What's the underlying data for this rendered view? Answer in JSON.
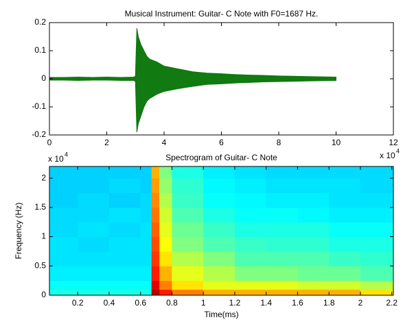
{
  "chart_data": [
    {
      "type": "area",
      "title": "Musical Instrument: Guitar- C Note with F0=1687 Hz.",
      "x": [
        0,
        0.5,
        1,
        1.5,
        2,
        2.5,
        2.95,
        3.0,
        3.05,
        3.1,
        3.2,
        3.3,
        3.4,
        3.5,
        3.75,
        4,
        4.5,
        5,
        5.5,
        6,
        6.5,
        7,
        7.5,
        8,
        8.5,
        9,
        9.5,
        10
      ],
      "series": [
        {
          "color": "#117a11",
          "values": [
            0.005,
            0.005,
            0.006,
            0.005,
            0.006,
            0.005,
            0.006,
            0.01,
            0.18,
            0.15,
            0.12,
            0.1,
            0.08,
            0.07,
            0.06,
            0.045,
            0.035,
            0.025,
            0.02,
            0.018,
            0.015,
            0.013,
            0.012,
            0.01,
            0.009,
            0.008,
            0.007,
            0.006
          ]
        },
        {
          "color": "#117a11",
          "values": [
            -0.005,
            -0.005,
            -0.006,
            -0.005,
            -0.005,
            -0.006,
            -0.006,
            -0.01,
            -0.19,
            -0.16,
            -0.13,
            -0.1,
            -0.08,
            -0.07,
            -0.055,
            -0.045,
            -0.035,
            -0.027,
            -0.02,
            -0.018,
            -0.015,
            -0.013,
            -0.011,
            -0.01,
            -0.009,
            -0.008,
            -0.007,
            -0.006
          ]
        }
      ],
      "xlim": [
        0,
        12
      ],
      "xticks": [
        0,
        2,
        4,
        6,
        8,
        10,
        12
      ],
      "ylim": [
        -0.2,
        0.2
      ],
      "yticks": [
        -0.2,
        -0.1,
        0,
        0.1,
        0.2
      ],
      "x_multiplier": {
        "base": "x 10",
        "power": "4"
      }
    },
    {
      "type": "heatmap",
      "title": "Spectrogram of Guitar- C Note",
      "x_label": "Time(ms)",
      "y_label": "Frequency (Hz)",
      "colormap": "jet",
      "zlim": [
        0,
        1
      ],
      "x_edges": [
        0.02,
        0.2,
        0.4,
        0.6,
        0.67,
        0.72,
        0.8,
        1.0,
        1.2,
        1.4,
        1.6,
        1.8,
        2.0,
        2.21
      ],
      "y_edges": [
        0,
        0.1,
        0.25,
        0.5,
        0.75,
        1.0,
        1.25,
        1.5,
        1.75,
        2.0,
        2.2
      ],
      "z": [
        [
          0.4,
          0.4,
          0.4,
          0.4,
          0.95,
          0.85,
          0.75,
          0.7,
          0.7,
          0.7,
          0.7,
          0.7,
          0.65
        ],
        [
          0.38,
          0.38,
          0.38,
          0.38,
          0.9,
          0.75,
          0.65,
          0.6,
          0.6,
          0.6,
          0.58,
          0.58,
          0.55
        ],
        [
          0.36,
          0.36,
          0.36,
          0.36,
          0.85,
          0.7,
          0.6,
          0.55,
          0.5,
          0.5,
          0.48,
          0.48,
          0.45
        ],
        [
          0.35,
          0.35,
          0.35,
          0.35,
          0.82,
          0.65,
          0.55,
          0.5,
          0.45,
          0.45,
          0.45,
          0.43,
          0.42
        ],
        [
          0.35,
          0.34,
          0.35,
          0.35,
          0.8,
          0.62,
          0.5,
          0.45,
          0.43,
          0.42,
          0.42,
          0.4,
          0.4
        ],
        [
          0.34,
          0.35,
          0.34,
          0.35,
          0.78,
          0.6,
          0.48,
          0.43,
          0.4,
          0.4,
          0.4,
          0.38,
          0.38
        ],
        [
          0.34,
          0.34,
          0.35,
          0.34,
          0.76,
          0.58,
          0.45,
          0.4,
          0.38,
          0.38,
          0.37,
          0.36,
          0.36
        ],
        [
          0.33,
          0.34,
          0.33,
          0.34,
          0.74,
          0.55,
          0.43,
          0.38,
          0.37,
          0.36,
          0.36,
          0.35,
          0.35
        ],
        [
          0.33,
          0.33,
          0.34,
          0.33,
          0.72,
          0.52,
          0.42,
          0.37,
          0.36,
          0.35,
          0.35,
          0.35,
          0.34
        ],
        [
          0.33,
          0.33,
          0.33,
          0.33,
          0.7,
          0.5,
          0.4,
          0.36,
          0.35,
          0.34,
          0.34,
          0.34,
          0.34
        ]
      ],
      "xlim": [
        0.02,
        2.21
      ],
      "xticks": [
        0.2,
        0.4,
        0.6,
        0.8,
        1,
        1.2,
        1.4,
        1.6,
        1.8,
        2,
        2.2
      ],
      "ylim": [
        0,
        2.2
      ],
      "yticks": [
        0,
        0.5,
        1,
        1.5,
        2
      ],
      "y_multiplier": {
        "base": "x 10",
        "power": "4"
      }
    }
  ]
}
